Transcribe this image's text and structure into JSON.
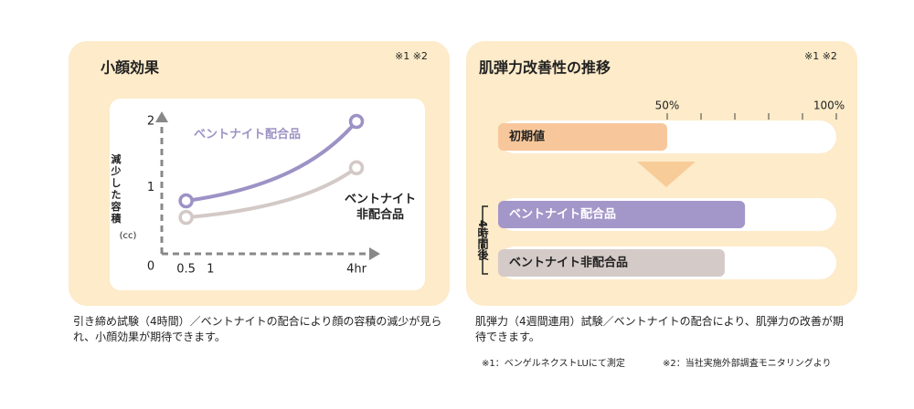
{
  "chart_data": [
    {
      "type": "line",
      "title": "小顔効果",
      "note": "※1 ※2",
      "y_label": "減少した容積",
      "y_unit": "(cc)",
      "x": [
        0.5,
        4
      ],
      "xlim": [
        0,
        4.4
      ],
      "xticks": [
        0.5,
        1,
        {
          "value": 4,
          "label": "4hr"
        }
      ],
      "ylim": [
        0,
        2.2
      ],
      "yticks": [
        0,
        1,
        2
      ],
      "series": [
        {
          "name": "ベントナイト配合品",
          "color": "#9d92c5",
          "values": [
            0.8,
            2.0
          ]
        },
        {
          "name": "ベントナイト非配合品",
          "color": "#d3c9c6",
          "values": [
            0.55,
            1.3
          ]
        }
      ],
      "caption": "引き締め試験（4時間）／ベントナイトの配合により顔の容積の減少が見られ、小顔効果が期待できます。"
    },
    {
      "type": "hbar",
      "title": "肌弾力改善性の推移",
      "note": "※1 ※2",
      "xlim": [
        0,
        100
      ],
      "xticks": [
        {
          "value": 50,
          "label": "50%"
        },
        {
          "value": 100,
          "label": "100%"
        }
      ],
      "xminorticks": [
        60,
        70,
        80,
        90
      ],
      "categories": [
        "初期値",
        "ベントナイト配合品",
        "ベントナイト非配合品"
      ],
      "values": [
        50,
        73,
        67
      ],
      "colors": [
        "#f7c79b",
        "#a397c9",
        "#d4cac7"
      ],
      "group_label": "4時間後",
      "caption": "肌弾力（4週間連用）試験／ベントナイトの配合により、肌弾力の改善が期待できます。"
    }
  ],
  "footnotes": [
    "※1：ベンゲルネクストLUにて測定",
    "※2：当社実施外部調査モニタリングより"
  ]
}
